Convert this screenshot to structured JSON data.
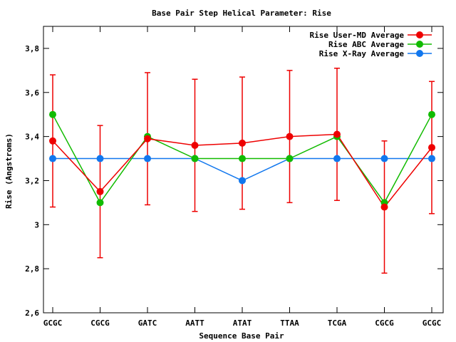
{
  "chart_data": {
    "type": "line",
    "title": "Base Pair Step Helical Parameter: Rise",
    "xlabel": "Sequence Base Pair",
    "ylabel": "Rise (Angstroms)",
    "categories": [
      "GCGC",
      "CGCG",
      "GATC",
      "AATT",
      "ATAT",
      "TTAA",
      "TCGA",
      "CGCG",
      "GCGC"
    ],
    "ylim": [
      2.6,
      3.9
    ],
    "yticks": [
      2.6,
      2.8,
      3,
      3.2,
      3.4,
      3.6,
      3.8
    ],
    "ytick_labels": [
      "2,6",
      "2,8",
      "3",
      "3,2",
      "3,4",
      "3,6",
      "3,8"
    ],
    "grid": false,
    "legend_position": "top-right",
    "series": [
      {
        "name": "Rise User-MD Average",
        "color": "#ee0000",
        "values": [
          3.38,
          3.15,
          3.39,
          3.36,
          3.37,
          3.4,
          3.41,
          3.08,
          3.35
        ],
        "err_low": [
          3.08,
          2.85,
          3.09,
          3.06,
          3.07,
          3.1,
          3.11,
          2.78,
          3.05
        ],
        "err_high": [
          3.68,
          3.45,
          3.69,
          3.66,
          3.67,
          3.7,
          3.71,
          3.38,
          3.65
        ]
      },
      {
        "name": "Rise ABC Average",
        "color": "#11bb00",
        "values": [
          3.5,
          3.1,
          3.4,
          3.3,
          3.3,
          3.3,
          3.4,
          3.1,
          3.5
        ]
      },
      {
        "name": "Rise X-Ray Average",
        "color": "#1177ee",
        "values": [
          3.3,
          3.3,
          3.3,
          3.3,
          3.2,
          3.3,
          3.3,
          3.3,
          3.3
        ]
      }
    ]
  }
}
